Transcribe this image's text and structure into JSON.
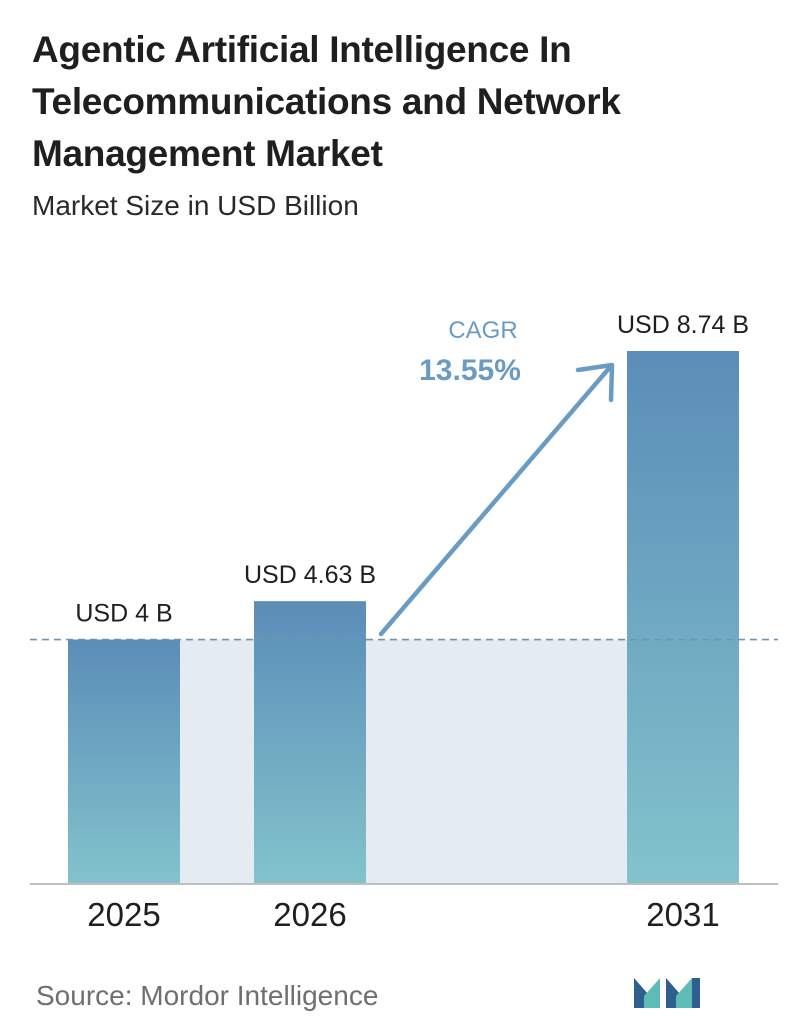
{
  "header": {
    "title": "Agentic Artificial Intelligence In Telecommunications and Network Management Market",
    "subtitle": "Market Size in USD Billion"
  },
  "chart_data": {
    "type": "bar",
    "categories": [
      "2025",
      "2026",
      "2031"
    ],
    "values": [
      4,
      4.63,
      8.74
    ],
    "value_labels": [
      "USD 4 B",
      "USD 4.63 B",
      "USD 8.74 B"
    ],
    "unit": "USD Billion",
    "ylim": [
      0,
      8.74
    ],
    "grid": false,
    "legend": "none",
    "reference_line_value": 4,
    "annotation": {
      "label": "CAGR",
      "value": "13.55%"
    },
    "colors": {
      "bar_top": "#5b8db8",
      "bar_bottom": "#82c3cc",
      "band": "#e4ebf1",
      "arrow": "#6a9bc3",
      "reference_line": "#6e94b4",
      "axis": "#bfbfbf"
    }
  },
  "footer": {
    "source": "Source: Mordor Intelligence",
    "logo_icon": "mordor-intelligence-logo-icon",
    "logo_colors": [
      "#2f5f8f",
      "#5dbdb6"
    ]
  }
}
